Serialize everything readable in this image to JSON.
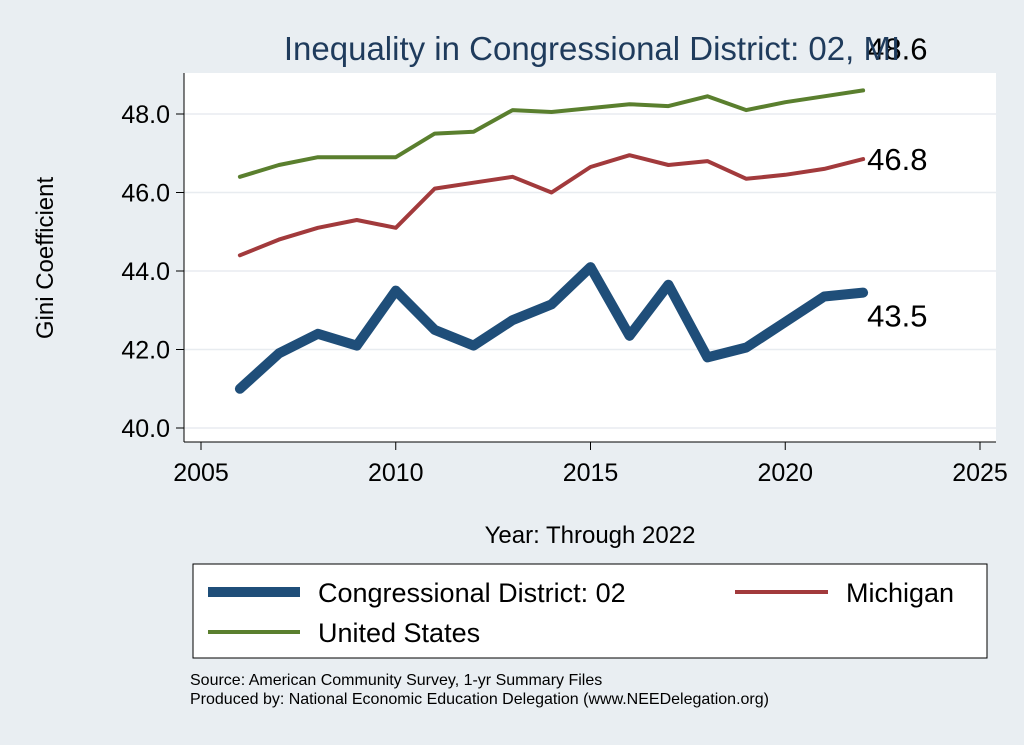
{
  "chart_data": {
    "type": "line",
    "title": "Inequality in Congressional District:  02, MI",
    "xlabel": "Year: Through 2022",
    "ylabel": "Gini Coefficient",
    "xlim": [
      2005,
      2025
    ],
    "ylim": [
      40.0,
      49.0
    ],
    "x_ticks": [
      2005,
      2010,
      2015,
      2020,
      2025
    ],
    "x_tick_labels": [
      "2005",
      "2010",
      "2015",
      "2020",
      "2025"
    ],
    "y_ticks": [
      40,
      42,
      44,
      46,
      48
    ],
    "y_tick_labels": [
      "40.0",
      "42.0",
      "44.0",
      "46.0",
      "48.0"
    ],
    "grid": true,
    "legend_position": "bottom",
    "series": [
      {
        "name": "Congressional District:  02",
        "color": "#1f4e79",
        "line": "thick",
        "x": [
          2006,
          2007,
          2008,
          2009,
          2010,
          2011,
          2012,
          2013,
          2014,
          2015,
          2016,
          2017,
          2018,
          2019,
          2020,
          2021,
          2022
        ],
        "values": [
          41.0,
          41.9,
          42.4,
          42.1,
          43.5,
          42.5,
          42.1,
          42.75,
          43.15,
          44.1,
          42.35,
          43.65,
          41.8,
          42.05,
          42.7,
          43.35,
          43.45
        ],
        "end_label": "43.5"
      },
      {
        "name": "Michigan",
        "color": "#a23a3c",
        "line": "medium",
        "x": [
          2006,
          2007,
          2008,
          2009,
          2010,
          2011,
          2012,
          2013,
          2014,
          2015,
          2016,
          2017,
          2018,
          2019,
          2020,
          2021,
          2022
        ],
        "values": [
          44.4,
          44.8,
          45.1,
          45.3,
          45.1,
          46.1,
          46.25,
          46.4,
          46.0,
          46.65,
          46.95,
          46.7,
          46.8,
          46.35,
          46.45,
          46.6,
          46.85
        ],
        "end_label": "46.8"
      },
      {
        "name": "United States",
        "color": "#5a7f2e",
        "line": "medium",
        "x": [
          2006,
          2007,
          2008,
          2009,
          2010,
          2011,
          2012,
          2013,
          2014,
          2015,
          2016,
          2017,
          2018,
          2019,
          2020,
          2021,
          2022
        ],
        "values": [
          46.4,
          46.7,
          46.9,
          46.9,
          46.9,
          47.5,
          47.55,
          48.1,
          48.05,
          48.15,
          48.25,
          48.2,
          48.45,
          48.1,
          48.3,
          48.45,
          48.6
        ],
        "end_label": "48.6"
      }
    ],
    "legend": [
      {
        "label": "Congressional District:  02",
        "series": 0
      },
      {
        "label": "Michigan",
        "series": 1
      },
      {
        "label": "United States",
        "series": 2
      }
    ]
  },
  "footer": {
    "source": "Source: American Community Survey, 1-yr Summary Files",
    "producer": "Produced by: National Economic Education Delegation (www.NEEDelegation.org)"
  },
  "colors": {
    "background": "#e9eef2",
    "plot_background": "#ffffff",
    "title": "#1f3b5c",
    "grid": "#e8ecf0"
  }
}
